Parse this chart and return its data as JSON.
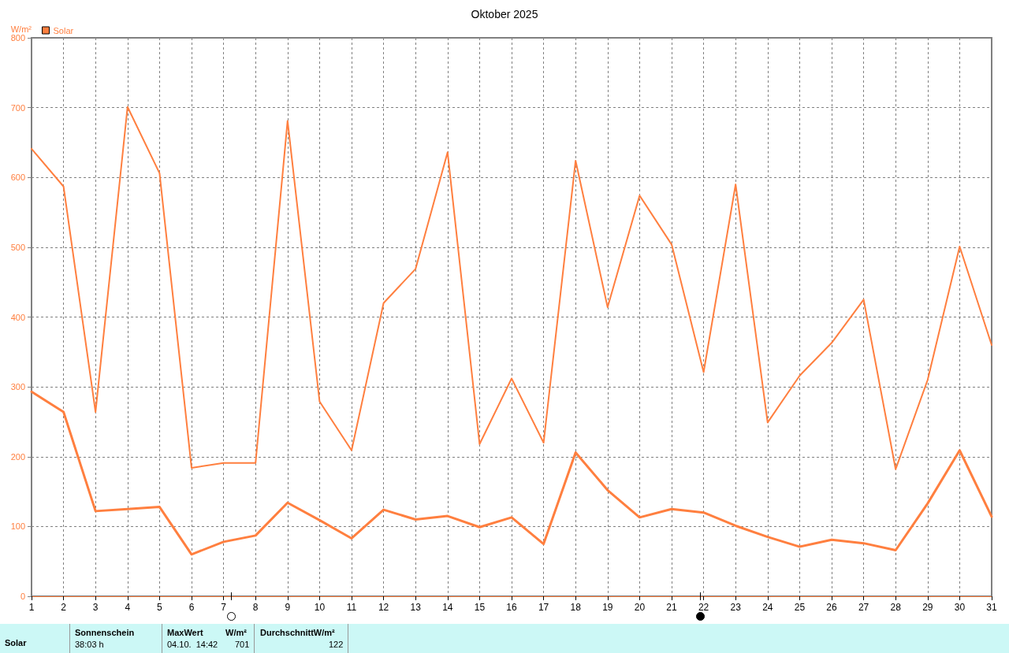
{
  "chart_data": {
    "type": "line",
    "title": "Oktober 2025",
    "ylabel": "W/m²",
    "x": [
      1,
      2,
      3,
      4,
      5,
      6,
      7,
      8,
      9,
      10,
      11,
      12,
      13,
      14,
      15,
      16,
      17,
      18,
      19,
      20,
      21,
      22,
      23,
      24,
      25,
      26,
      27,
      28,
      29,
      30,
      31
    ],
    "series": [
      {
        "name": "Solar",
        "color": "#ff7f3f",
        "values": [
          293,
          264,
          122,
          125,
          128,
          60,
          78,
          87,
          134,
          109,
          83,
          124,
          110,
          115,
          99,
          113,
          75,
          206,
          152,
          113,
          125,
          120,
          101,
          85,
          71,
          81,
          76,
          66,
          133,
          209,
          114
        ]
      },
      {
        "color": "#ff7f3f",
        "values": [
          641,
          587,
          264,
          701,
          606,
          184,
          191,
          191,
          681,
          279,
          209,
          420,
          469,
          636,
          218,
          312,
          220,
          624,
          414,
          574,
          504,
          321,
          590,
          249,
          316,
          363,
          425,
          182,
          310,
          501,
          360
        ]
      }
    ],
    "xlim": [
      1,
      31
    ],
    "xticks": [
      1,
      2,
      3,
      4,
      5,
      6,
      7,
      8,
      9,
      10,
      11,
      12,
      13,
      14,
      15,
      16,
      17,
      18,
      19,
      20,
      21,
      22,
      23,
      24,
      25,
      26,
      27,
      28,
      29,
      30,
      31
    ],
    "ylim": [
      0,
      800
    ],
    "yticks": [
      0,
      100,
      200,
      300,
      400,
      500,
      600,
      700,
      800
    ],
    "grid": true,
    "legend": "top left",
    "marker": "none",
    "line_style": "solid",
    "annotations": [
      "Solar",
      "Sonnenschein",
      "38:03 h",
      "MaxWert",
      "W/m²",
      "04.10.  14:42",
      "701",
      "DurchschnittW/m²",
      "122"
    ]
  }
}
